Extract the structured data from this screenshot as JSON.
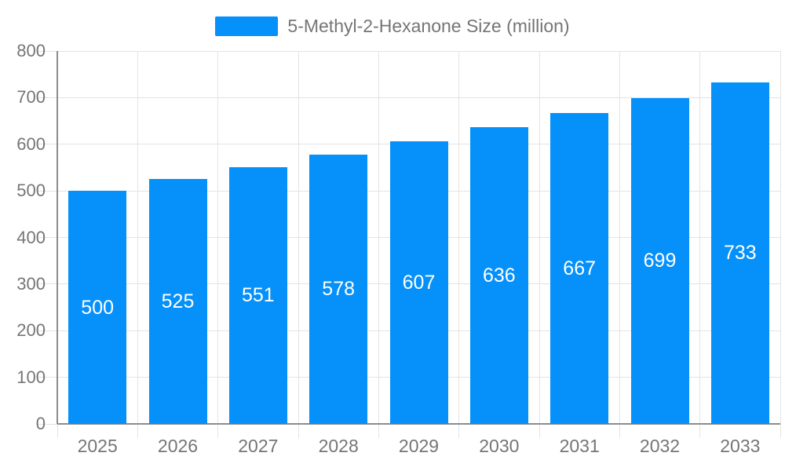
{
  "legend": {
    "label": "5-Methyl-2-Hexanone Size (million)"
  },
  "colors": {
    "bar": "#0690FA",
    "axis_line": "#8C8C8C",
    "grid_line": "#E3E3E3",
    "axis_text": "#757575",
    "bar_label": "#FFFFFF",
    "background": "#FFFFFF"
  },
  "chart_data": {
    "type": "bar",
    "title": "",
    "xlabel": "",
    "ylabel": "",
    "categories": [
      "2025",
      "2026",
      "2027",
      "2028",
      "2029",
      "2030",
      "2031",
      "2032",
      "2033"
    ],
    "series": [
      {
        "name": "5-Methyl-2-Hexanone Size (million)",
        "values": [
          500,
          525,
          551,
          578,
          607,
          636,
          667,
          699,
          733
        ]
      }
    ],
    "ylim": [
      0,
      800
    ],
    "ytick_interval": 100,
    "ytick_labels": [
      "0",
      "100",
      "200",
      "300",
      "400",
      "500",
      "600",
      "700",
      "800"
    ],
    "grid": true,
    "legend_position": "top-center",
    "value_labels": "inside-center"
  }
}
